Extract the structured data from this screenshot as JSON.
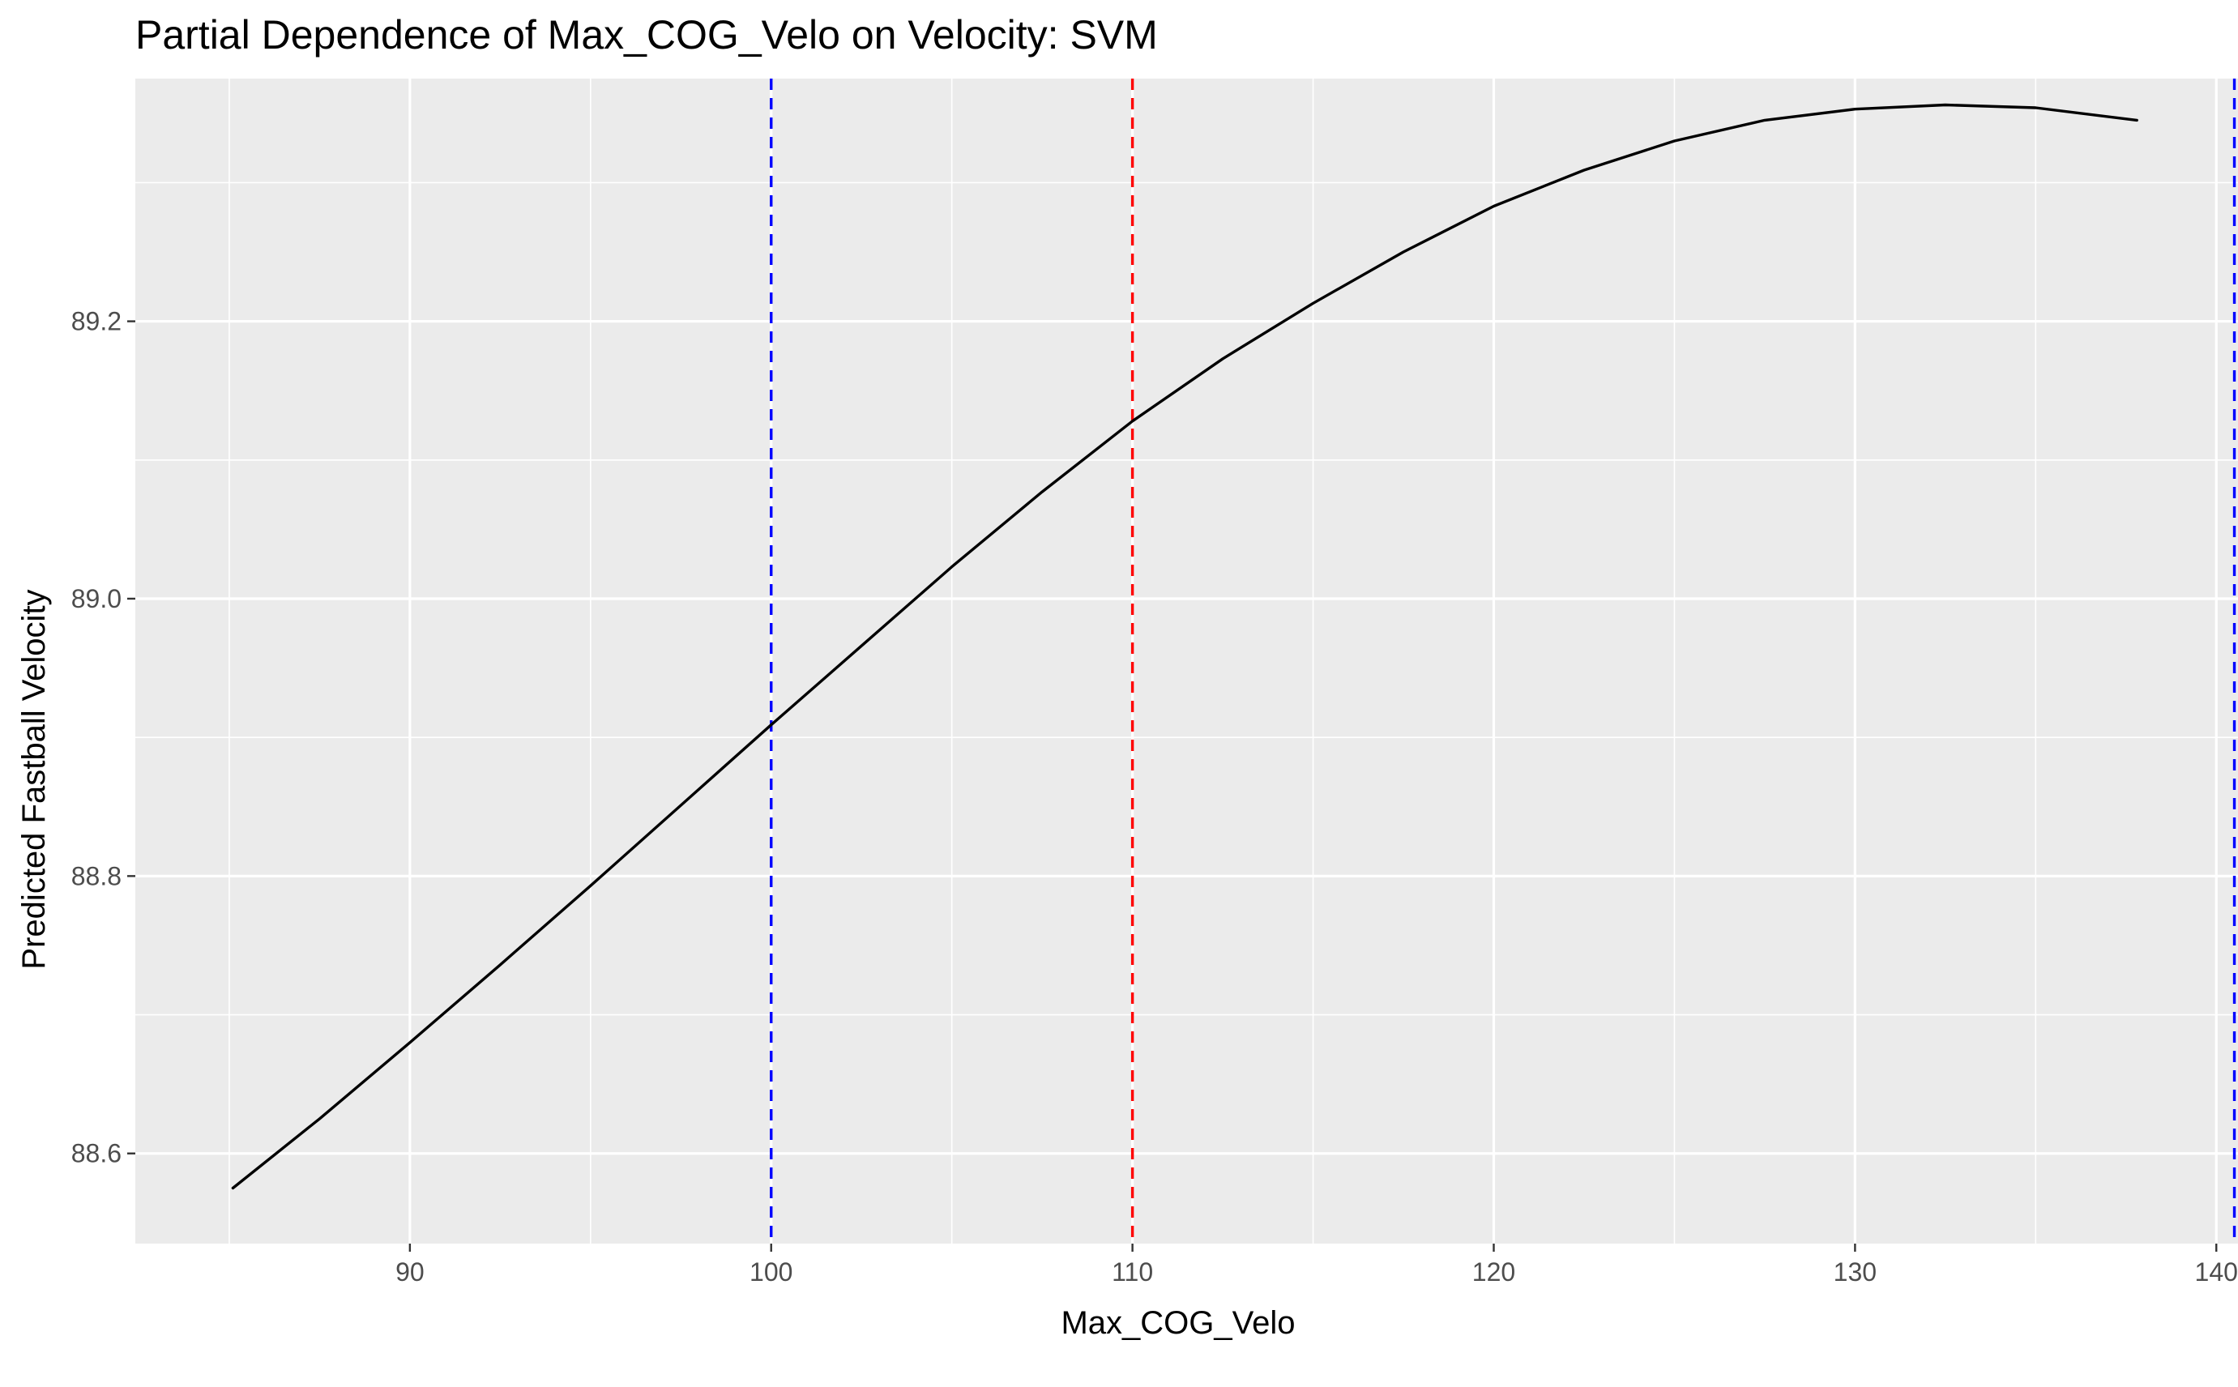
{
  "chart_data": {
    "type": "line",
    "title": "Partial Dependence of Max_COG_Velo on Velocity: SVM",
    "xlabel": "Max_COG_Velo",
    "ylabel": "Predicted Fastball Velocity",
    "xlim": [
      82.4,
      140.6
    ],
    "ylim": [
      88.535,
      89.375
    ],
    "x_ticks": [
      90,
      100,
      110,
      120,
      130,
      140
    ],
    "x_tick_labels": [
      "90",
      "100",
      "110",
      "120",
      "130",
      "140"
    ],
    "x_minor_ticks": [
      85,
      95,
      105,
      115,
      125,
      135
    ],
    "y_ticks": [
      88.6,
      88.8,
      89.0,
      89.2
    ],
    "y_tick_labels": [
      "88.6",
      "88.8",
      "89.0",
      "89.2"
    ],
    "y_minor_ticks": [
      88.7,
      88.9,
      89.1,
      89.3
    ],
    "grid": true,
    "panel_background": "#ebebeb",
    "grid_color": "#ffffff",
    "series": [
      {
        "color": "#000000",
        "x": [
          85.1,
          87.5,
          90,
          92.5,
          95,
          97.5,
          100,
          102.5,
          105,
          107.5,
          110,
          112.5,
          115,
          117.5,
          120,
          122.5,
          125,
          127.5,
          130,
          132.5,
          135,
          137.8
        ],
        "y": [
          88.575,
          88.625,
          88.68,
          88.736,
          88.793,
          88.851,
          88.909,
          88.966,
          89.023,
          89.077,
          89.128,
          89.173,
          89.213,
          89.25,
          89.283,
          89.309,
          89.33,
          89.345,
          89.353,
          89.356,
          89.354,
          89.345
        ]
      }
    ],
    "reference_lines": [
      {
        "x": 100,
        "color": "#0000ff",
        "style": "dashed"
      },
      {
        "x": 110,
        "color": "#ff0000",
        "style": "dashed"
      },
      {
        "x": 140.5,
        "color": "#0000ff",
        "style": "dashed"
      }
    ]
  }
}
